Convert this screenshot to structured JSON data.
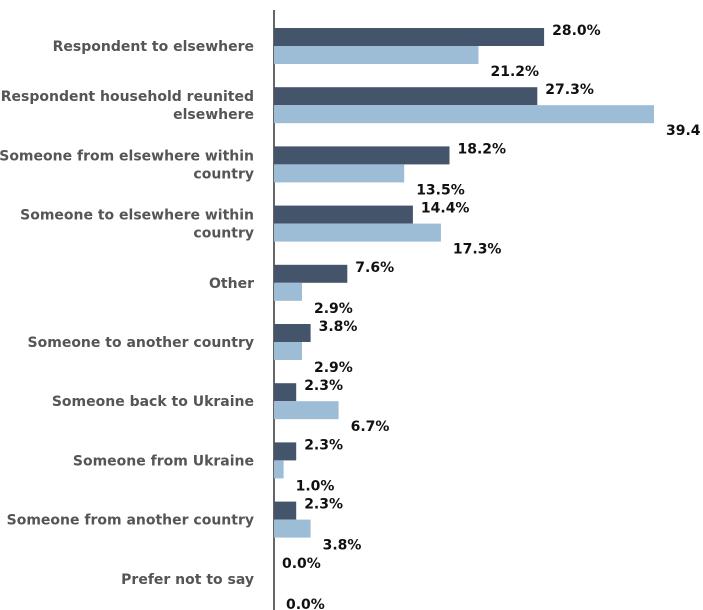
{
  "chart_data": {
    "type": "bar",
    "orientation": "horizontal",
    "categories": [
      [
        "Respondent to elsewhere"
      ],
      [
        "Respondent household reunited",
        "elsewhere"
      ],
      [
        "Someone from elsewhere within",
        "country"
      ],
      [
        "Someone to elsewhere within",
        "country"
      ],
      [
        "Other"
      ],
      [
        "Someone to another country"
      ],
      [
        "Someone back to Ukraine"
      ],
      [
        "Someone from Ukraine"
      ],
      [
        "Someone from another country"
      ],
      [
        "Prefer not to say"
      ]
    ],
    "series": [
      {
        "color": "#44546a",
        "values": [
          28.0,
          27.3,
          18.2,
          14.4,
          7.6,
          3.8,
          2.3,
          2.3,
          2.3,
          0.0
        ],
        "labels": [
          "28.0%",
          "27.3%",
          "18.2%",
          "14.4%",
          "7.6%",
          "3.8%",
          "2.3%",
          "2.3%",
          "2.3%",
          "0.0%"
        ]
      },
      {
        "color": "#9dbcd6",
        "values": [
          21.2,
          39.4,
          13.5,
          17.3,
          2.9,
          2.9,
          6.7,
          1.0,
          3.8,
          0.0
        ],
        "labels": [
          "21.2%",
          "39.4",
          "13.5%",
          "17.3%",
          "2.9%",
          "2.9%",
          "6.7%",
          "1.0%",
          "3.8%",
          "0.0%"
        ]
      }
    ],
    "xlim": [
      0,
      39.4
    ],
    "grid": false,
    "legend": "none"
  }
}
